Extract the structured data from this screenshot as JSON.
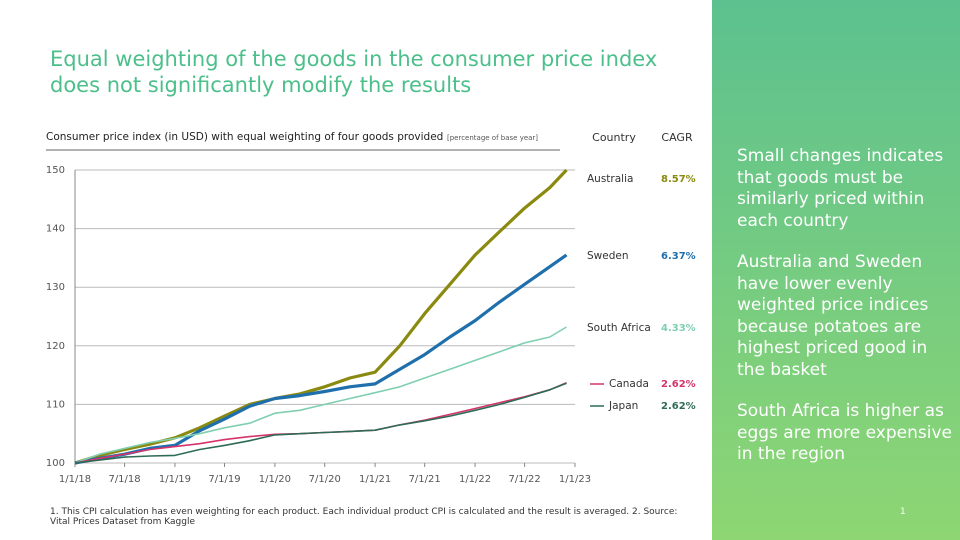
{
  "slide": {
    "title": "Equal weighting of the goods in the consumer price index does not significantly modify the results",
    "notes": [
      "Small changes indicates that goods must be similarly priced within each country",
      "Australia and Sweden have lower evenly weighted price indices because potatoes are highest priced good in the basket",
      "South Africa is higher as eggs are more expensive in the region"
    ],
    "footnote": "1. This CPI calculation has even weighting for each product. Each individual product CPI is calculated and the result is averaged. 2.  Source: Vital Prices Dataset from Kaggle",
    "page_number": 1
  },
  "chart_data": {
    "type": "line",
    "title": "Consumer price index (in USD) with equal weighting of four goods provided",
    "subtitle": "[percentage of base year]",
    "column_headers": [
      "Country",
      "CAGR"
    ],
    "x": [
      "1/1/18",
      "4/1/18",
      "7/1/18",
      "10/1/18",
      "1/1/19",
      "4/1/19",
      "7/1/19",
      "10/1/19",
      "1/1/20",
      "4/1/20",
      "7/1/20",
      "10/1/20",
      "1/1/21",
      "4/1/21",
      "7/1/21",
      "10/1/21",
      "1/1/22",
      "4/1/22",
      "7/1/22",
      "10/1/22",
      "12/1/22"
    ],
    "xlim": [
      "1/1/18",
      "1/1/23"
    ],
    "xticks": [
      "1/1/18",
      "7/1/18",
      "1/1/19",
      "7/1/19",
      "1/1/20",
      "7/1/20",
      "1/1/21",
      "7/1/21",
      "1/1/22",
      "7/1/22",
      "1/1/23"
    ],
    "ylim": [
      100,
      150
    ],
    "yticks": [
      100,
      110,
      120,
      130,
      140,
      150
    ],
    "grid": true,
    "series": [
      {
        "name": "Australia",
        "cagr": "8.57%",
        "color": "#8a8a10",
        "line_width": 3.2,
        "values": [
          100,
          101.3,
          102.3,
          103.2,
          104.3,
          106,
          108,
          110,
          111,
          111.8,
          113,
          114.5,
          115.5,
          120,
          125.5,
          130.5,
          135.5,
          139.5,
          143.5,
          147,
          150
        ]
      },
      {
        "name": "Sweden",
        "cagr": "6.37%",
        "color": "#1f6fad",
        "line_width": 3.2,
        "values": [
          100,
          100.8,
          101.5,
          102.5,
          103,
          105.5,
          107.5,
          109.7,
          111,
          111.5,
          112.2,
          113,
          113.5,
          116,
          118.5,
          121.5,
          124.3,
          127.5,
          130.5,
          133.5,
          135.5
        ]
      },
      {
        "name": "South Africa",
        "cagr": "4.33%",
        "color": "#7fcfb0",
        "line_width": 1.6,
        "values": [
          100,
          101.5,
          102.5,
          103.5,
          104.2,
          105,
          106,
          106.8,
          108.5,
          109,
          110,
          111,
          112,
          113,
          114.5,
          116,
          117.5,
          119,
          120.5,
          121.5,
          123.2
        ]
      },
      {
        "name": "Canada",
        "cagr": "2.62%",
        "color": "#d6336c",
        "line_width": 1.6,
        "values": [
          100,
          100.8,
          101.5,
          102.3,
          102.8,
          103.3,
          104,
          104.5,
          104.9,
          105,
          105.2,
          105.4,
          105.6,
          106.5,
          107.3,
          108.3,
          109.3,
          110.3,
          111.3,
          112.5,
          113.7
        ]
      },
      {
        "name": "Japan",
        "cagr": "2.62%",
        "color": "#2e6b57",
        "line_width": 1.6,
        "values": [
          100,
          100.5,
          101,
          101.2,
          101.3,
          102.3,
          103,
          103.8,
          104.8,
          105,
          105.2,
          105.4,
          105.6,
          106.5,
          107.2,
          108,
          109,
          110,
          111.2,
          112.5,
          113.6
        ]
      }
    ]
  }
}
